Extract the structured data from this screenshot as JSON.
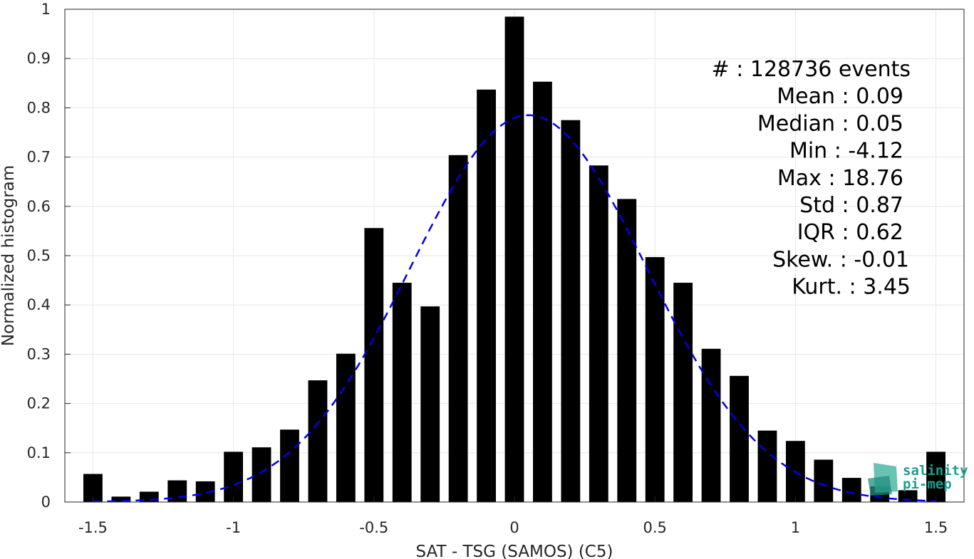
{
  "chart_data": {
    "type": "bar",
    "xlabel": "SAT - TSG (SAMOS) (C5)",
    "ylabel": "Normalized histogram",
    "xlim": [
      -1.6,
      1.6
    ],
    "ylim": [
      0,
      1
    ],
    "x_ticks": [
      "-1.5",
      "-1",
      "-0.5",
      "0",
      "0.5",
      "1",
      "1.5"
    ],
    "y_ticks": [
      "0",
      "0.1",
      "0.2",
      "0.3",
      "0.4",
      "0.5",
      "0.6",
      "0.7",
      "0.8",
      "0.9",
      "1"
    ],
    "grid": true,
    "x": [
      -1.5,
      -1.4,
      -1.3,
      -1.2,
      -1.1,
      -1.0,
      -0.9,
      -0.8,
      -0.7,
      -0.6,
      -0.5,
      -0.4,
      -0.3,
      -0.2,
      -0.1,
      0.0,
      0.1,
      0.2,
      0.3,
      0.4,
      0.5,
      0.6,
      0.7,
      0.8,
      0.9,
      1.0,
      1.1,
      1.2,
      1.3,
      1.4,
      1.5
    ],
    "values": [
      0.057,
      0.011,
      0.021,
      0.044,
      0.042,
      0.102,
      0.111,
      0.147,
      0.247,
      0.301,
      0.556,
      0.445,
      0.397,
      0.704,
      0.837,
      0.985,
      0.853,
      0.775,
      0.683,
      0.615,
      0.497,
      0.445,
      0.311,
      0.256,
      0.145,
      0.124,
      0.086,
      0.049,
      0.032,
      0.024,
      0.102
    ],
    "fit_curve": {
      "style": "dashed",
      "color": "#0000ee",
      "mean": 0.05,
      "std": 0.42,
      "peak": 0.785
    },
    "bar_color": "#000000",
    "stats": [
      "#  : 128736 events",
      "Mean : 0.09",
      "Median : 0.05",
      "Min : -4.12",
      "Max : 18.76",
      "Std : 0.87",
      "IQR : 0.62",
      "Skew. : -0.01",
      "Kurt. : 3.45"
    ]
  },
  "logo": {
    "line1": "salinity",
    "line2": "pi-mep"
  }
}
